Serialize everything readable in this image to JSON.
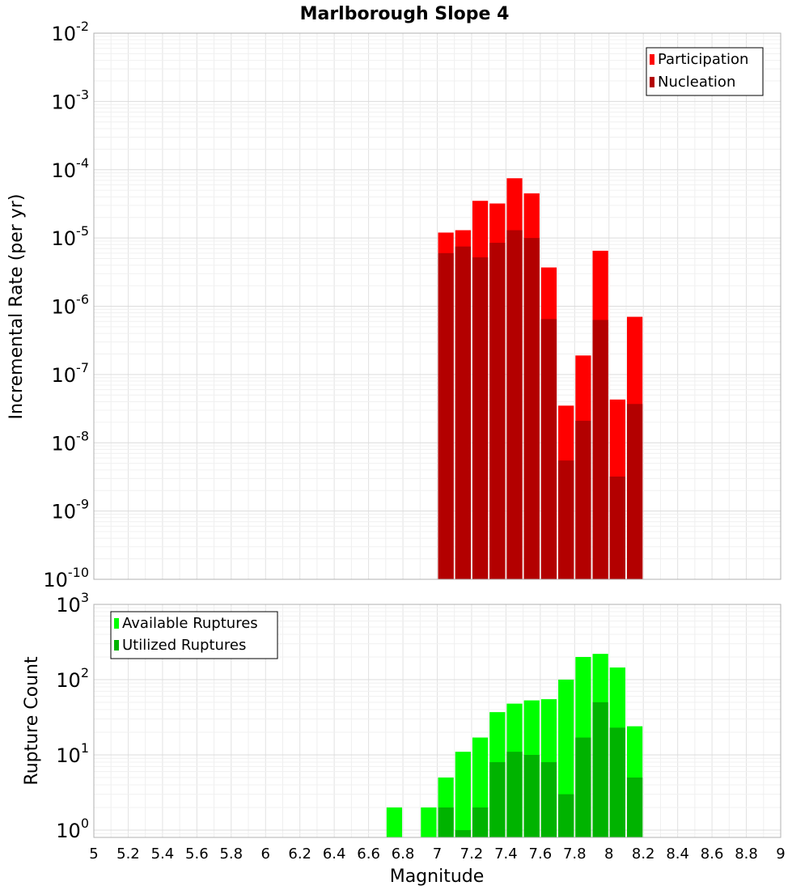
{
  "chart_data": {
    "type": "bar",
    "title": "Marlborough Slope 4",
    "xlabel": "Magnitude",
    "xlim": [
      5,
      9
    ],
    "x_ticks": [
      "5",
      "5.2",
      "5.4",
      "5.6",
      "5.8",
      "6",
      "6.2",
      "6.4",
      "6.6",
      "6.8",
      "7",
      "7.2",
      "7.4",
      "7.6",
      "7.8",
      "8",
      "8.2",
      "8.4",
      "8.6",
      "8.8",
      "9"
    ],
    "bin_width": 0.1,
    "grid": true,
    "panels": [
      {
        "ylabel": "Incremental Rate (per yr)",
        "yscale": "log",
        "ylim": [
          1e-10,
          0.01
        ],
        "y_tick_exponents": [
          "-10",
          "-9",
          "-8",
          "-7",
          "-6",
          "-5",
          "-4",
          "-3",
          "-2"
        ],
        "legend_position": "top-right",
        "series": [
          {
            "name": "Participation",
            "color": "#ff0000",
            "x": [
              7.05,
              7.15,
              7.25,
              7.35,
              7.45,
              7.55,
              7.65,
              7.75,
              7.85,
              7.95,
              8.05,
              8.15
            ],
            "values": [
              1.2e-05,
              1.3e-05,
              3.5e-05,
              3.2e-05,
              7.5e-05,
              4.5e-05,
              3.7e-06,
              3.5e-08,
              1.9e-07,
              6.5e-06,
              4.3e-08,
              7e-07
            ]
          },
          {
            "name": "Nucleation",
            "color": "#b30000",
            "x": [
              7.05,
              7.15,
              7.25,
              7.35,
              7.45,
              7.55,
              7.65,
              7.75,
              7.85,
              7.95,
              8.05,
              8.15
            ],
            "values": [
              6e-06,
              7.5e-06,
              5.2e-06,
              8.5e-06,
              1.3e-05,
              1e-05,
              6.5e-07,
              5.5e-09,
              2.1e-08,
              6.3e-07,
              3.2e-09,
              3.7e-08
            ]
          }
        ]
      },
      {
        "ylabel": "Rupture Count",
        "yscale": "log",
        "ylim": [
          0.8,
          1000
        ],
        "y_tick_exponents": [
          "0",
          "1",
          "2",
          "3"
        ],
        "legend_position": "top-left",
        "series": [
          {
            "name": "Available Ruptures",
            "color": "#00ff00",
            "x": [
              6.75,
              6.95,
              7.05,
              7.15,
              7.25,
              7.35,
              7.45,
              7.55,
              7.65,
              7.75,
              7.85,
              7.95,
              8.05,
              8.15
            ],
            "values": [
              2,
              2,
              5,
              11,
              17,
              37,
              48,
              53,
              55,
              100,
              200,
              220,
              145,
              24
            ]
          },
          {
            "name": "Utilized Ruptures",
            "color": "#00b300",
            "x": [
              6.75,
              6.95,
              7.05,
              7.15,
              7.25,
              7.35,
              7.45,
              7.55,
              7.65,
              7.75,
              7.85,
              7.95,
              8.05,
              8.15
            ],
            "values": [
              null,
              null,
              2,
              1,
              2,
              8,
              11,
              10,
              8,
              3,
              17,
              50,
              23,
              5
            ]
          }
        ]
      }
    ]
  }
}
